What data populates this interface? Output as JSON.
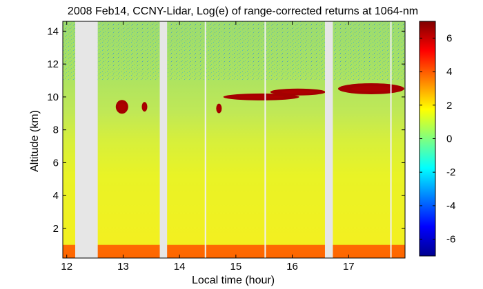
{
  "chart_data": {
    "type": "heatmap",
    "title": "2008 Feb14, CCNY-Lidar, Log(e) of range-corrected returns at 1064-nm",
    "xlabel": "Local time (hour)",
    "ylabel": "Altitude (km)",
    "xlim": [
      11.93,
      18.0
    ],
    "ylim": [
      0.2,
      14.6
    ],
    "x_ticks": [
      12,
      13,
      14,
      15,
      16,
      17
    ],
    "x_tick_labels": [
      "12",
      "13",
      "14",
      "15",
      "16",
      "17"
    ],
    "y_ticks": [
      2,
      4,
      6,
      8,
      10,
      12,
      14
    ],
    "y_tick_labels": [
      "2",
      "4",
      "6",
      "8",
      "10",
      "12",
      "14"
    ],
    "colorbar": {
      "colormap": "jet",
      "range": [
        -7,
        7
      ],
      "ticks": [
        6,
        4,
        2,
        0,
        -2,
        -4,
        -6
      ],
      "tick_labels": [
        "6",
        "4",
        "2",
        "0",
        "-2",
        "-4",
        "-6"
      ]
    },
    "data_gaps": [
      {
        "x_start": 12.15,
        "x_end": 12.55
      },
      {
        "x_start": 13.65,
        "x_end": 13.78
      },
      {
        "x_start": 16.58,
        "x_end": 16.72
      }
    ],
    "thin_gaps": [
      14.46,
      15.52,
      17.75
    ],
    "layers": [
      {
        "name": "near-surface boundary layer",
        "x_start": 11.93,
        "x_end": 18.0,
        "y_bottom": 0.3,
        "y_top": 1.0,
        "value": 4
      },
      {
        "name": "mid troposphere",
        "x_start": 11.93,
        "x_end": 18.0,
        "y_bottom": 1.0,
        "y_top": 8.0,
        "value": 1.2
      },
      {
        "name": "upper background",
        "x_start": 11.93,
        "x_end": 18.0,
        "y_bottom": 8.0,
        "y_top": 14.6,
        "value": 0.5
      }
    ],
    "clouds": [
      {
        "x": 12.98,
        "y": 9.4,
        "value": 6.5
      },
      {
        "x": 13.38,
        "y": 9.4,
        "value": 6.5
      },
      {
        "x": 14.7,
        "y": 9.3,
        "value": 6.5
      },
      {
        "x": 15.45,
        "y": 10.0,
        "value": 6.5
      },
      {
        "x": 16.1,
        "y": 10.3,
        "value": 6.5
      },
      {
        "x": 17.4,
        "y": 10.5,
        "value": 6.5
      }
    ]
  }
}
